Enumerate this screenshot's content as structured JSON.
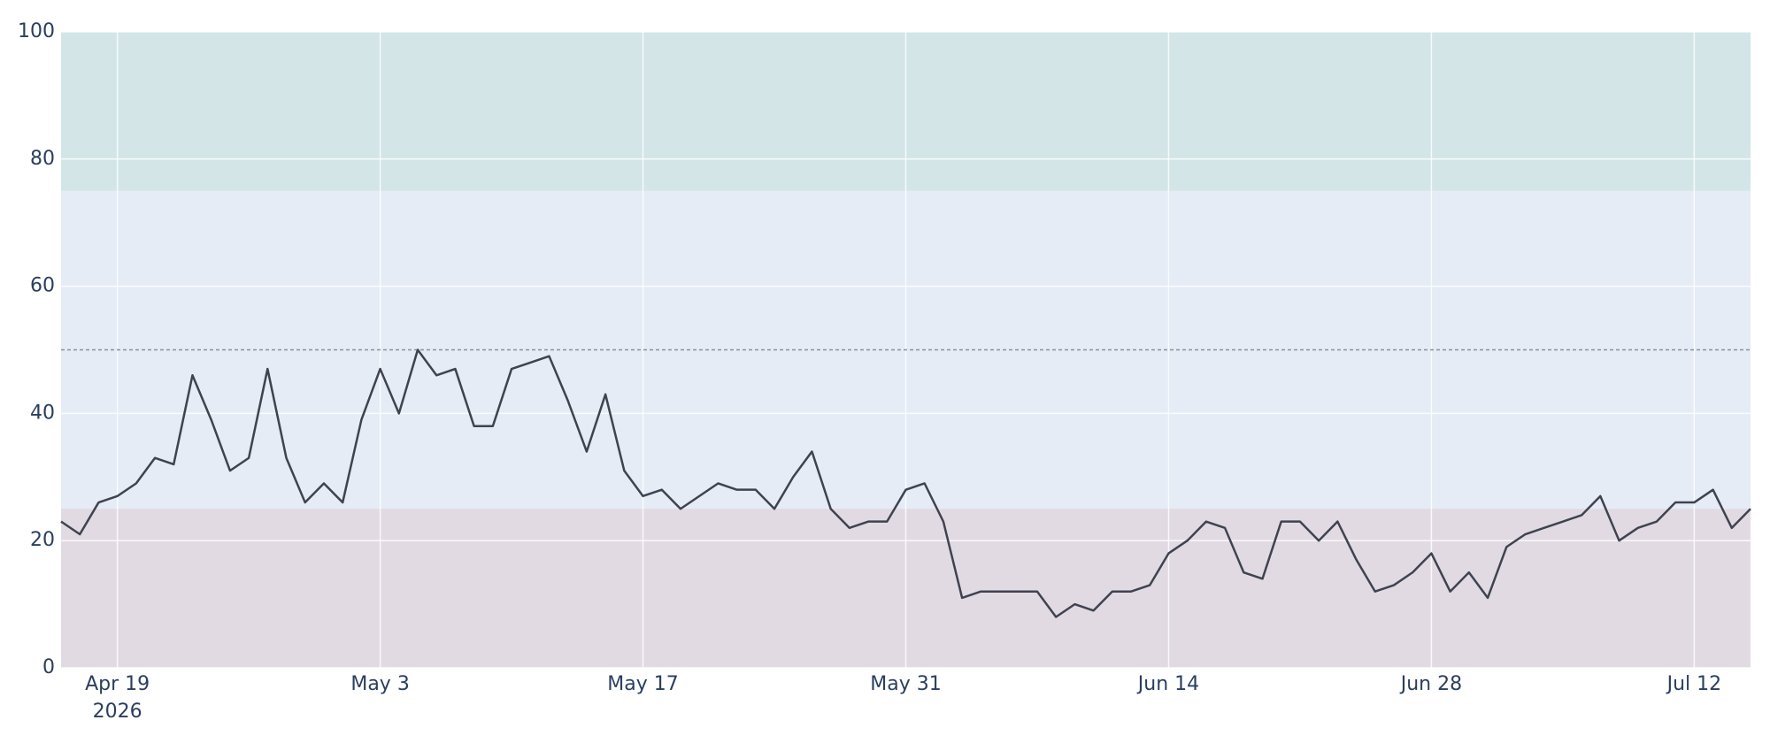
{
  "chart_data": {
    "type": "line",
    "x": [
      "2026-04-16",
      "2026-04-17",
      "2026-04-18",
      "2026-04-19",
      "2026-04-20",
      "2026-04-21",
      "2026-04-22",
      "2026-04-23",
      "2026-04-24",
      "2026-04-25",
      "2026-04-26",
      "2026-04-27",
      "2026-04-28",
      "2026-04-29",
      "2026-04-30",
      "2026-05-01",
      "2026-05-02",
      "2026-05-03",
      "2026-05-04",
      "2026-05-05",
      "2026-05-06",
      "2026-05-07",
      "2026-05-08",
      "2026-05-09",
      "2026-05-10",
      "2026-05-11",
      "2026-05-12",
      "2026-05-13",
      "2026-05-14",
      "2026-05-15",
      "2026-05-16",
      "2026-05-17",
      "2026-05-18",
      "2026-05-19",
      "2026-05-20",
      "2026-05-21",
      "2026-05-22",
      "2026-05-23",
      "2026-05-24",
      "2026-05-25",
      "2026-05-26",
      "2026-05-27",
      "2026-05-28",
      "2026-05-29",
      "2026-05-30",
      "2026-05-31",
      "2026-06-01",
      "2026-06-02",
      "2026-06-03",
      "2026-06-04",
      "2026-06-05",
      "2026-06-06",
      "2026-06-07",
      "2026-06-08",
      "2026-06-09",
      "2026-06-10",
      "2026-06-11",
      "2026-06-12",
      "2026-06-13",
      "2026-06-14",
      "2026-06-15",
      "2026-06-16",
      "2026-06-17",
      "2026-06-18",
      "2026-06-19",
      "2026-06-20",
      "2026-06-21",
      "2026-06-22",
      "2026-06-23",
      "2026-06-24",
      "2026-06-25",
      "2026-06-26",
      "2026-06-27",
      "2026-06-28",
      "2026-06-29",
      "2026-06-30",
      "2026-07-01",
      "2026-07-02",
      "2026-07-03",
      "2026-07-04",
      "2026-07-05",
      "2026-07-06",
      "2026-07-07",
      "2026-07-08",
      "2026-07-09",
      "2026-07-10",
      "2026-07-11",
      "2026-07-12",
      "2026-07-13",
      "2026-07-14",
      "2026-07-15"
    ],
    "values": [
      23,
      21,
      26,
      27,
      29,
      33,
      32,
      46,
      39,
      31,
      33,
      47,
      33,
      26,
      29,
      26,
      39,
      47,
      40,
      50,
      46,
      47,
      38,
      38,
      47,
      48,
      49,
      42,
      34,
      43,
      31,
      27,
      28,
      25,
      27,
      29,
      28,
      28,
      25,
      30,
      34,
      25,
      22,
      23,
      23,
      28,
      29,
      23,
      11,
      12,
      12,
      12,
      12,
      8,
      10,
      9,
      12,
      12,
      13,
      18,
      20,
      23,
      22,
      15,
      14,
      23,
      23,
      20,
      23,
      17,
      12,
      13,
      15,
      18,
      12,
      15,
      11,
      19,
      21,
      22,
      23,
      24,
      27,
      20,
      22,
      23,
      26,
      26,
      28,
      22,
      25
    ],
    "color": "#3f4350",
    "xlim": [
      "2026-04-16",
      "2026-07-15"
    ],
    "xticks": [
      {
        "value": "2026-04-19",
        "label": [
          "Apr 19",
          "2026"
        ]
      },
      {
        "value": "2026-05-03",
        "label": [
          "May 3"
        ]
      },
      {
        "value": "2026-05-17",
        "label": [
          "May 17"
        ]
      },
      {
        "value": "2026-05-31",
        "label": [
          "May 31"
        ]
      },
      {
        "value": "2026-06-14",
        "label": [
          "Jun 14"
        ]
      },
      {
        "value": "2026-06-28",
        "label": [
          "Jun 28"
        ]
      },
      {
        "value": "2026-07-12",
        "label": [
          "Jul 12"
        ]
      }
    ],
    "ylim": [
      0,
      100
    ],
    "yticks": [
      0,
      20,
      40,
      60,
      80,
      100
    ],
    "grid": true,
    "plot_bgcolor": "#e5ecf6",
    "bands": [
      {
        "from": 0,
        "to": 25,
        "color": "#e2dae3"
      },
      {
        "from": 75,
        "to": 100,
        "color": "#d3e5e7"
      }
    ],
    "reference_line": {
      "value": 50,
      "color": "#8a909c"
    }
  }
}
